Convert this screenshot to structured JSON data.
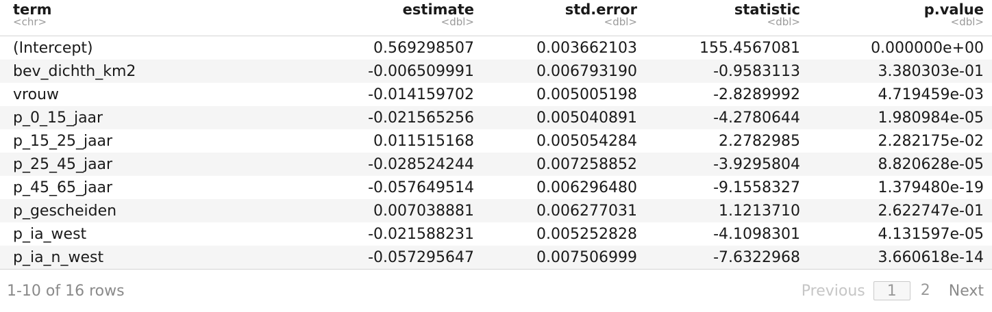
{
  "table": {
    "columns": [
      {
        "name": "term",
        "type": "<chr>"
      },
      {
        "name": "estimate",
        "type": "<dbl>"
      },
      {
        "name": "std.error",
        "type": "<dbl>"
      },
      {
        "name": "statistic",
        "type": "<dbl>"
      },
      {
        "name": "p.value",
        "type": "<dbl>"
      }
    ],
    "rows": [
      [
        "(Intercept)",
        "0.569298507",
        "0.003662103",
        "155.4567081",
        "0.000000e+00"
      ],
      [
        "bev_dichth_km2",
        "-0.006509991",
        "0.006793190",
        "-0.9583113",
        "3.380303e-01"
      ],
      [
        "vrouw",
        "-0.014159702",
        "0.005005198",
        "-2.8289992",
        "4.719459e-03"
      ],
      [
        "p_0_15_jaar",
        "-0.021565256",
        "0.005040891",
        "-4.2780644",
        "1.980984e-05"
      ],
      [
        "p_15_25_jaar",
        "0.011515168",
        "0.005054284",
        "2.2782985",
        "2.282175e-02"
      ],
      [
        "p_25_45_jaar",
        "-0.028524244",
        "0.007258852",
        "-3.9295804",
        "8.820628e-05"
      ],
      [
        "p_45_65_jaar",
        "-0.057649514",
        "0.006296480",
        "-9.1558327",
        "1.379480e-19"
      ],
      [
        "p_gescheiden",
        "0.007038881",
        "0.006277031",
        "1.1213710",
        "2.622747e-01"
      ],
      [
        "p_ia_west",
        "-0.021588231",
        "0.005252828",
        "-4.1098301",
        "4.131597e-05"
      ],
      [
        "p_ia_n_west",
        "-0.057295647",
        "0.007506999",
        "-7.6322968",
        "3.660618e-14"
      ]
    ]
  },
  "footer": {
    "rows_info": "1-10 of 16 rows",
    "previous_label": "Previous",
    "page_1": "1",
    "page_2": "2",
    "next_label": "Next"
  }
}
